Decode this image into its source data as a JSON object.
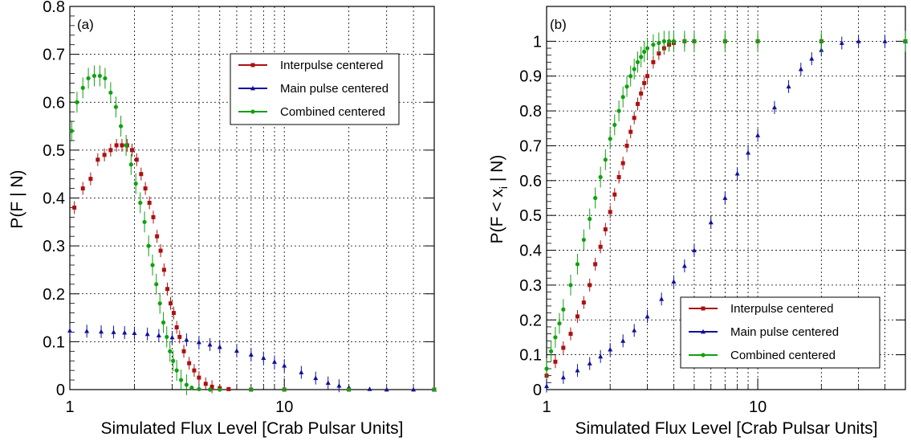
{
  "series_styles": [
    {
      "name": "Interpulse centered",
      "color": "#aa1111",
      "marker": "square"
    },
    {
      "name": "Main pulse centered",
      "color": "#11119a",
      "marker": "triangle"
    },
    {
      "name": "Combined centered",
      "color": "#11a011",
      "marker": "circle"
    }
  ],
  "chart_data": [
    {
      "type": "scatter",
      "panel_label": "(a)",
      "title": "",
      "xlabel": "Simulated Flux Level [Crab Pulsar Units]",
      "ylabel": "P(F | N)",
      "xscale": "log",
      "xlim": [
        1,
        50
      ],
      "ylim": [
        0,
        0.8
      ],
      "xticks": [
        1,
        10
      ],
      "xtick_labels": [
        "1",
        "10"
      ],
      "yticks": [
        0,
        0.1,
        0.2,
        0.3,
        0.4,
        0.5,
        0.6,
        0.7,
        0.8
      ],
      "ytick_labels": [
        "0",
        "0.1",
        "0.2",
        "0.3",
        "0.4",
        "0.5",
        "0.6",
        "0.7",
        "0.8"
      ],
      "grid": true,
      "legend_position": "top-right",
      "series": [
        {
          "name": "Interpulse centered",
          "x": [
            1.05,
            1.15,
            1.25,
            1.35,
            1.45,
            1.55,
            1.65,
            1.75,
            1.85,
            1.95,
            2.05,
            2.15,
            2.25,
            2.35,
            2.45,
            2.55,
            2.65,
            2.75,
            2.85,
            2.95,
            3.05,
            3.15,
            3.25,
            3.4,
            3.6,
            3.8,
            4.0,
            4.3,
            4.6,
            5.0,
            5.5,
            7,
            10,
            20,
            50
          ],
          "y": [
            0.38,
            0.42,
            0.44,
            0.48,
            0.49,
            0.5,
            0.51,
            0.51,
            0.51,
            0.5,
            0.48,
            0.45,
            0.42,
            0.39,
            0.36,
            0.32,
            0.29,
            0.25,
            0.21,
            0.18,
            0.16,
            0.13,
            0.11,
            0.08,
            0.055,
            0.04,
            0.025,
            0.012,
            0.006,
            0.003,
            0.001,
            0.0,
            0.0,
            0.0,
            0.0
          ]
        },
        {
          "name": "Main pulse centered",
          "x": [
            1.0,
            1.2,
            1.4,
            1.6,
            1.8,
            2.0,
            2.3,
            2.6,
            3.0,
            3.5,
            4.0,
            4.5,
            5.0,
            6.0,
            7.0,
            8.0,
            9.0,
            10,
            12,
            14,
            16,
            18,
            20,
            25,
            30,
            40,
            50
          ],
          "y": [
            0.123,
            0.122,
            0.121,
            0.12,
            0.119,
            0.118,
            0.116,
            0.113,
            0.109,
            0.104,
            0.099,
            0.094,
            0.089,
            0.081,
            0.073,
            0.066,
            0.058,
            0.05,
            0.036,
            0.024,
            0.014,
            0.008,
            0.004,
            0.001,
            0.0,
            0.0,
            0.0
          ]
        },
        {
          "name": "Combined centered",
          "x": [
            1.02,
            1.08,
            1.15,
            1.22,
            1.3,
            1.38,
            1.46,
            1.55,
            1.64,
            1.73,
            1.83,
            1.93,
            2.03,
            2.13,
            2.23,
            2.33,
            2.43,
            2.53,
            2.63,
            2.73,
            2.83,
            2.93,
            3.03,
            3.15,
            3.3,
            3.5,
            3.7,
            4.0,
            4.5,
            5,
            7,
            10,
            20,
            50
          ],
          "y": [
            0.54,
            0.6,
            0.63,
            0.65,
            0.655,
            0.655,
            0.65,
            0.62,
            0.59,
            0.55,
            0.51,
            0.47,
            0.43,
            0.39,
            0.35,
            0.3,
            0.26,
            0.22,
            0.18,
            0.14,
            0.11,
            0.08,
            0.06,
            0.04,
            0.02,
            0.01,
            0.004,
            0.001,
            0.0,
            0.0,
            0.0,
            0.0,
            0.0,
            0.0
          ]
        }
      ]
    },
    {
      "type": "scatter",
      "panel_label": "(b)",
      "title": "",
      "xlabel": "Simulated Flux Level [Crab Pulsar Units]",
      "ylabel": "P(F < x_i | N)",
      "xscale": "log",
      "xlim": [
        1,
        50
      ],
      "ylim": [
        0,
        1.1
      ],
      "xticks": [
        1,
        10
      ],
      "xtick_labels": [
        "1",
        "10"
      ],
      "yticks": [
        0,
        0.1,
        0.2,
        0.3,
        0.4,
        0.5,
        0.6,
        0.7,
        0.8,
        0.9,
        1
      ],
      "ytick_labels": [
        "0",
        "0.1",
        "0.2",
        "0.3",
        "0.4",
        "0.5",
        "0.6",
        "0.7",
        "0.8",
        "0.9",
        "1"
      ],
      "grid": true,
      "legend_position": "bottom-right",
      "series": [
        {
          "name": "Interpulse centered",
          "x": [
            1.0,
            1.1,
            1.2,
            1.3,
            1.4,
            1.5,
            1.6,
            1.7,
            1.8,
            1.9,
            2.0,
            2.1,
            2.2,
            2.3,
            2.4,
            2.5,
            2.6,
            2.7,
            2.8,
            2.9,
            3.0,
            3.2,
            3.4,
            3.6,
            3.8,
            4.0,
            4.5,
            5,
            7,
            10,
            20,
            50
          ],
          "y": [
            0.04,
            0.08,
            0.12,
            0.16,
            0.21,
            0.25,
            0.3,
            0.36,
            0.41,
            0.46,
            0.51,
            0.56,
            0.61,
            0.65,
            0.7,
            0.74,
            0.78,
            0.82,
            0.85,
            0.88,
            0.9,
            0.94,
            0.965,
            0.98,
            0.99,
            0.995,
            1.0,
            1.0,
            1.0,
            1.0,
            1.0,
            1.0
          ]
        },
        {
          "name": "Main pulse centered",
          "x": [
            1.0,
            1.2,
            1.4,
            1.6,
            1.8,
            2.0,
            2.3,
            2.6,
            3.0,
            3.5,
            4.0,
            4.5,
            5.0,
            6.0,
            7.0,
            8.0,
            9.0,
            10,
            12,
            14,
            16,
            18,
            20,
            25,
            30,
            40,
            50
          ],
          "y": [
            0.01,
            0.035,
            0.055,
            0.075,
            0.095,
            0.115,
            0.14,
            0.17,
            0.21,
            0.26,
            0.31,
            0.355,
            0.4,
            0.48,
            0.55,
            0.62,
            0.68,
            0.73,
            0.81,
            0.87,
            0.92,
            0.95,
            0.975,
            0.995,
            1.0,
            1.0,
            1.0
          ]
        },
        {
          "name": "Combined centered",
          "x": [
            1.0,
            1.05,
            1.1,
            1.15,
            1.2,
            1.3,
            1.4,
            1.5,
            1.6,
            1.7,
            1.8,
            1.9,
            2.0,
            2.1,
            2.2,
            2.3,
            2.4,
            2.5,
            2.6,
            2.7,
            2.8,
            2.9,
            3.0,
            3.2,
            3.4,
            3.6,
            3.8,
            4.0,
            4.5,
            5,
            7,
            10,
            20,
            50
          ],
          "y": [
            0.06,
            0.11,
            0.15,
            0.19,
            0.23,
            0.3,
            0.36,
            0.43,
            0.49,
            0.55,
            0.61,
            0.66,
            0.72,
            0.76,
            0.8,
            0.84,
            0.87,
            0.9,
            0.92,
            0.94,
            0.955,
            0.97,
            0.98,
            0.99,
            0.995,
            1.0,
            1.0,
            1.0,
            1.0,
            1.0,
            1.0,
            1.0,
            1.0,
            1.0
          ]
        }
      ]
    }
  ]
}
